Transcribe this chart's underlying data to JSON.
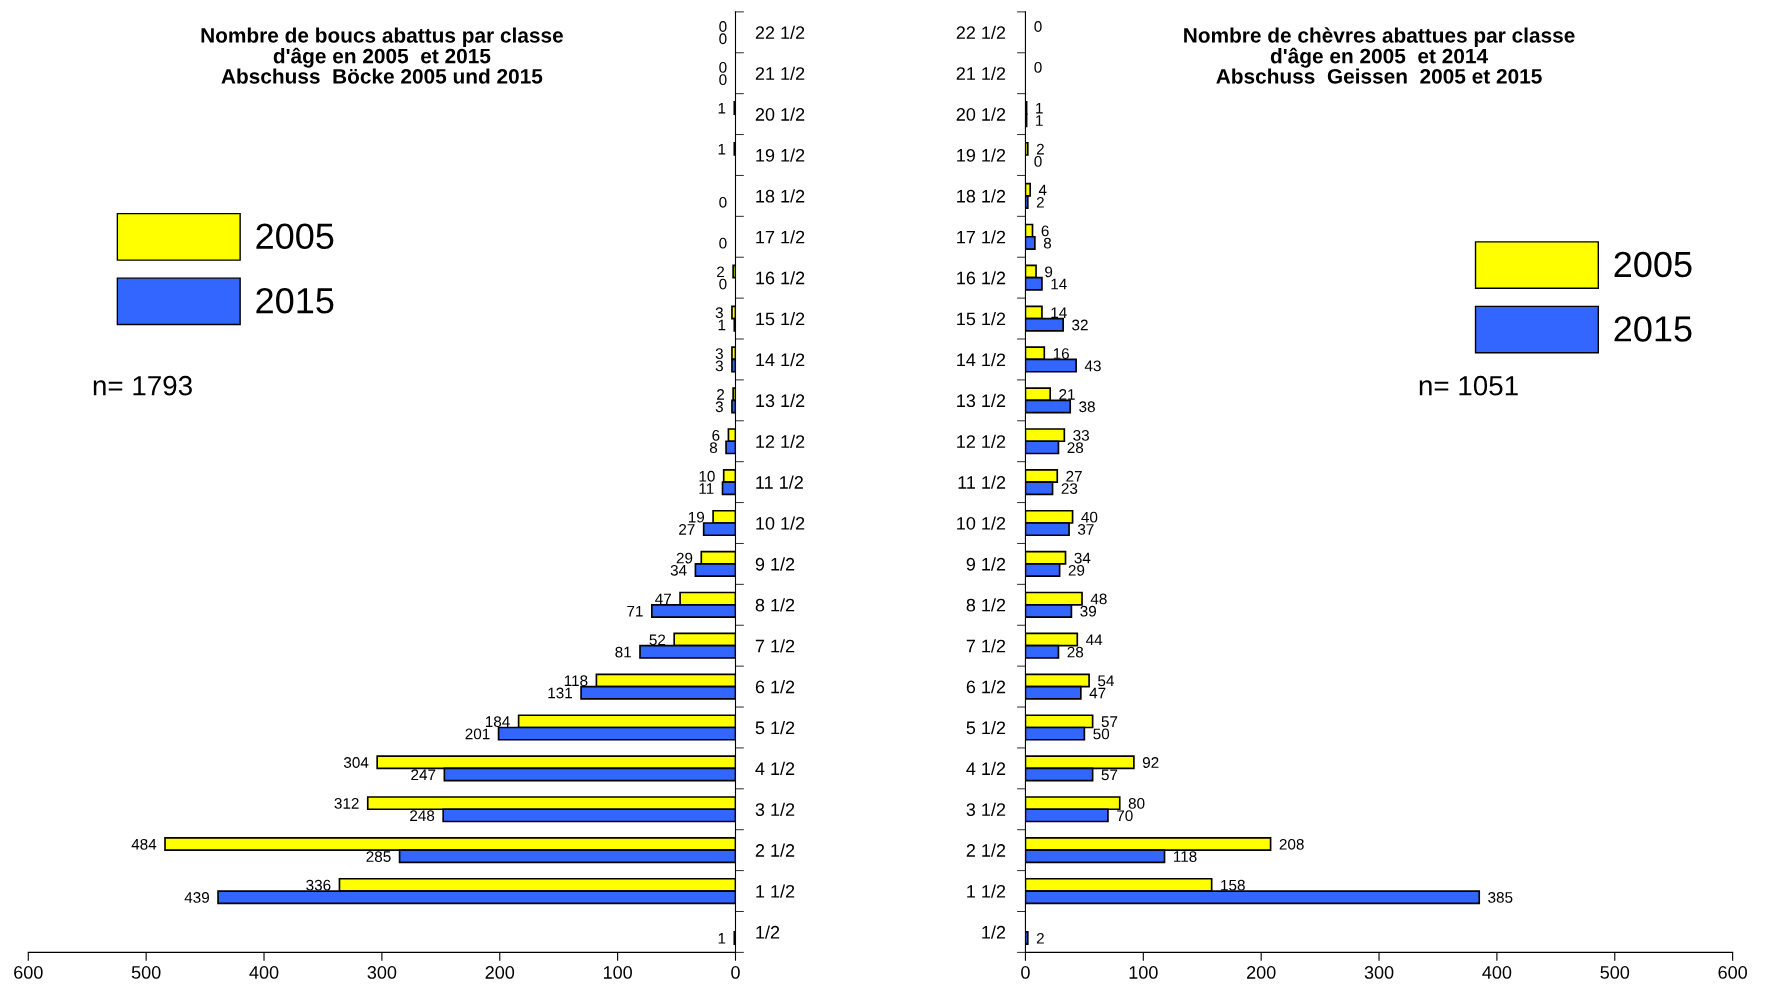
{
  "chart_data": [
    {
      "type": "bar",
      "orientation": "horizontal",
      "title": "Nombre de boucs abattus par classe\nd'âge en 2005  et 2015\nAbschuss  Böcke 2005 und 2015",
      "categories": [
        "22 1/2",
        "21 1/2",
        "20 1/2",
        "19 1/2",
        "18 1/2",
        "17 1/2",
        "16 1/2",
        "15 1/2",
        "14 1/2",
        "13 1/2",
        "12 1/2",
        "11 1/2",
        "10 1/2",
        "9 1/2",
        "8 1/2",
        "7 1/2",
        "6 1/2",
        "5 1/2",
        "4 1/2",
        "3 1/2",
        "2 1/2",
        "1 1/2",
        "1/2"
      ],
      "series": [
        {
          "name": "2005",
          "color": "#ffff00",
          "values": [
            0,
            0,
            1,
            1,
            0,
            0,
            2,
            3,
            3,
            2,
            6,
            10,
            19,
            29,
            47,
            52,
            118,
            184,
            304,
            312,
            484,
            336,
            0
          ],
          "value_labels": [
            "0",
            "0",
            "1",
            "1",
            null,
            null,
            "2",
            "3",
            "3",
            "2",
            "6",
            "10",
            "19",
            "29",
            "47",
            "52",
            "118",
            "184",
            "304",
            "312",
            "484",
            "336",
            null
          ]
        },
        {
          "name": "2015",
          "color": "#3366ff",
          "values": [
            0,
            0,
            0,
            0,
            0,
            0,
            0,
            1,
            3,
            3,
            8,
            11,
            27,
            34,
            71,
            81,
            131,
            201,
            247,
            248,
            285,
            439,
            1
          ],
          "value_labels": [
            "0",
            "0",
            null,
            null,
            "0",
            "0",
            "0",
            "1",
            "3",
            "3",
            "8",
            "11",
            "27",
            "34",
            "71",
            "81",
            "131",
            "201",
            "247",
            "248",
            "285",
            "439",
            "1"
          ]
        }
      ],
      "xlim": [
        600,
        0
      ],
      "xticks": [
        600,
        500,
        400,
        300,
        200,
        100,
        0
      ],
      "legend": "upper left",
      "annotations": [
        "n= 1793"
      ]
    },
    {
      "type": "bar",
      "orientation": "horizontal",
      "title": "Nombre de chèvres abattues par classe\nd'âge en 2005  et 2014\nAbschuss  Geissen  2005 et 2015",
      "categories": [
        "22 1/2",
        "21 1/2",
        "20 1/2",
        "19 1/2",
        "18 1/2",
        "17 1/2",
        "16 1/2",
        "15 1/2",
        "14 1/2",
        "13 1/2",
        "12 1/2",
        "11 1/2",
        "10 1/2",
        "9 1/2",
        "8 1/2",
        "7 1/2",
        "6 1/2",
        "5 1/2",
        "4 1/2",
        "3 1/2",
        "2 1/2",
        "1 1/2",
        "1/2"
      ],
      "series": [
        {
          "name": "2005",
          "color": "#ffff00",
          "values": [
            0,
            0,
            1,
            2,
            4,
            6,
            9,
            14,
            16,
            21,
            33,
            27,
            40,
            34,
            48,
            44,
            54,
            57,
            92,
            80,
            208,
            158,
            0
          ],
          "value_labels": [
            "0",
            "0",
            "1",
            "2",
            "4",
            "6",
            "9",
            "14",
            "16",
            "21",
            "33",
            "27",
            "40",
            "34",
            "48",
            "44",
            "54",
            "57",
            "92",
            "80",
            "208",
            "158",
            null
          ]
        },
        {
          "name": "2015",
          "color": "#3366ff",
          "values": [
            0,
            0,
            1,
            0,
            2,
            8,
            14,
            32,
            43,
            38,
            28,
            23,
            37,
            29,
            39,
            28,
            47,
            50,
            57,
            70,
            118,
            385,
            2
          ],
          "value_labels": [
            null,
            null,
            "1",
            "0",
            "2",
            "8",
            "14",
            "32",
            "43",
            "38",
            "28",
            "23",
            "37",
            "29",
            "39",
            "28",
            "47",
            "50",
            "57",
            "70",
            "118",
            "385",
            "2"
          ]
        }
      ],
      "xlim": [
        0,
        600
      ],
      "xticks": [
        0,
        100,
        200,
        300,
        400,
        500,
        600
      ],
      "legend": "upper right",
      "annotations": [
        "n= 1051"
      ]
    }
  ]
}
